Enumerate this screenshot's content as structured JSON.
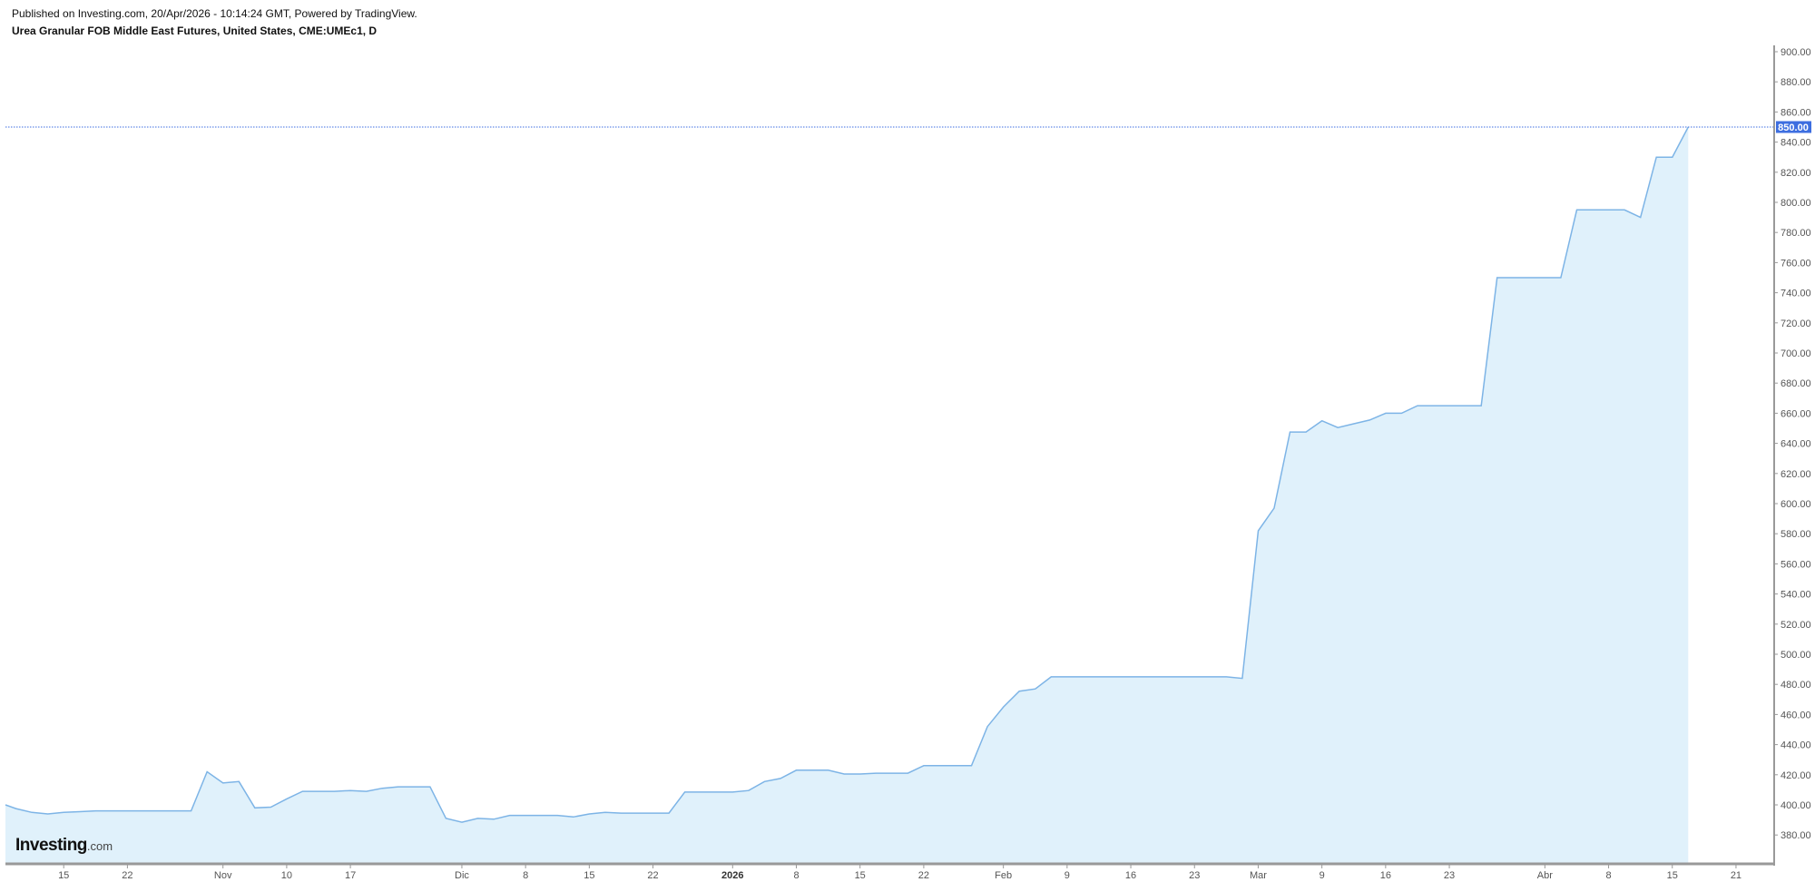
{
  "header": {
    "published": "Published on Investing.com, 20/Apr/2026 - 10:14:24 GMT, Powered by TradingView.",
    "title": "Urea Granular FOB Middle East Futures, United States, CME:UMEc1, D"
  },
  "logo": {
    "text": "Investing",
    "suffix": ".com"
  },
  "colors": {
    "line": "#7db4e6",
    "fill": "#e0f1fb",
    "last_price": "#3d6ee0",
    "axis": "#999999"
  },
  "chart_data": {
    "type": "area",
    "ylim": [
      360,
      905
    ],
    "grid": false,
    "y_ticks": [
      "380.00",
      "400.00",
      "420.00",
      "440.00",
      "460.00",
      "480.00",
      "500.00",
      "520.00",
      "540.00",
      "560.00",
      "580.00",
      "600.00",
      "620.00",
      "640.00",
      "660.00",
      "680.00",
      "700.00",
      "720.00",
      "740.00",
      "760.00",
      "780.00",
      "800.00",
      "820.00",
      "840.00",
      "860.00",
      "880.00",
      "900.00"
    ],
    "last_price": {
      "value": 850,
      "label": "850.00"
    },
    "x_ticks": [
      {
        "label": "15",
        "bar": 4
      },
      {
        "label": "22",
        "bar": 8
      },
      {
        "label": "Nov",
        "bar": 14
      },
      {
        "label": "10",
        "bar": 18
      },
      {
        "label": "17",
        "bar": 22
      },
      {
        "label": "Dic",
        "bar": 29
      },
      {
        "label": "8",
        "bar": 33
      },
      {
        "label": "15",
        "bar": 37
      },
      {
        "label": "22",
        "bar": 41
      },
      {
        "label": "2026",
        "bar": 46,
        "bold": true
      },
      {
        "label": "8",
        "bar": 50
      },
      {
        "label": "15",
        "bar": 54
      },
      {
        "label": "22",
        "bar": 58
      },
      {
        "label": "Feb",
        "bar": 63
      },
      {
        "label": "9",
        "bar": 67
      },
      {
        "label": "16",
        "bar": 71
      },
      {
        "label": "23",
        "bar": 75
      },
      {
        "label": "Mar",
        "bar": 79
      },
      {
        "label": "9",
        "bar": 83
      },
      {
        "label": "16",
        "bar": 87
      },
      {
        "label": "23",
        "bar": 91
      },
      {
        "label": "Abr",
        "bar": 97
      },
      {
        "label": "8",
        "bar": 101
      },
      {
        "label": "15",
        "bar": 105
      },
      {
        "label": "21",
        "bar": 109
      }
    ],
    "values": [
      400,
      397.5,
      395,
      394,
      395,
      395.5,
      396,
      396,
      396,
      396,
      396,
      396,
      396,
      422,
      414.5,
      415.5,
      398,
      398.5,
      404,
      409,
      409,
      409,
      409.5,
      409,
      411,
      412,
      412,
      412,
      391,
      388.5,
      391,
      390.5,
      393,
      393,
      393,
      393,
      392,
      394,
      395,
      394.5,
      394.5,
      394.5,
      394.5,
      408.5,
      408.5,
      408.5,
      408.5,
      409.5,
      415.5,
      417.5,
      423,
      423,
      423,
      420.5,
      420.5,
      421,
      421,
      421,
      426,
      426,
      426,
      426,
      452,
      465,
      475.5,
      477,
      485,
      485,
      485,
      485,
      485,
      485,
      485,
      485,
      485,
      485,
      485,
      485,
      484,
      582,
      597,
      647.5,
      647.5,
      655,
      650.5,
      653,
      655.5,
      660,
      660,
      665,
      665,
      665,
      665,
      665,
      750,
      750,
      750,
      750,
      750,
      795,
      795,
      795,
      795,
      790,
      830,
      830,
      850
    ]
  }
}
